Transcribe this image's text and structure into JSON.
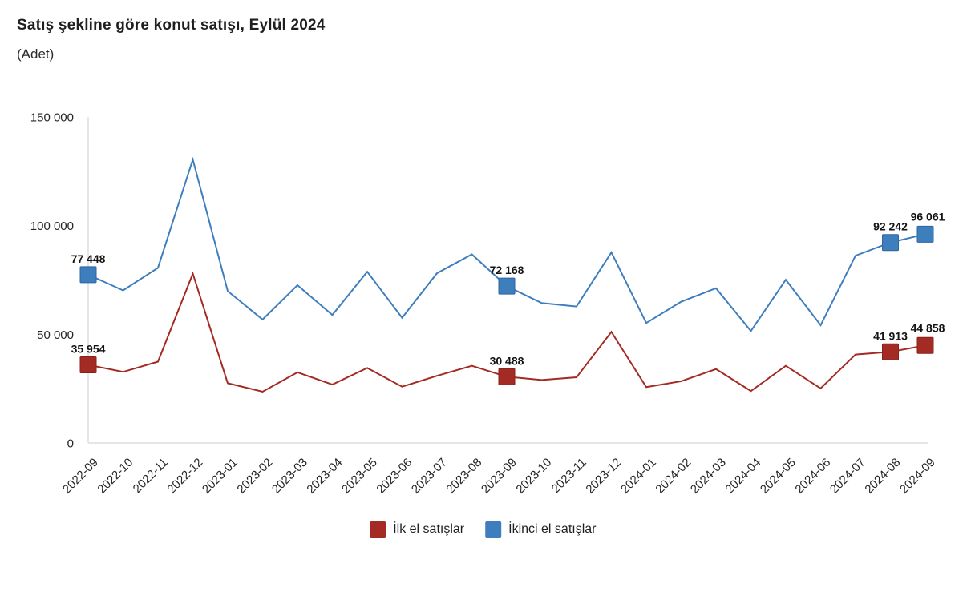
{
  "header": {
    "title": "Satış şekline göre konut satışı, Eylül 2024",
    "subtitle": "(Adet)"
  },
  "legend": [
    {
      "label": "İlk el satışlar",
      "color": "#A32B23"
    },
    {
      "label": "İkinci el satışlar",
      "color": "#3E7EBD"
    }
  ],
  "chart_data": {
    "type": "line",
    "title": "Satış şekline göre konut satışı, Eylül 2024",
    "subtitle": "(Adet)",
    "unit": "Adet",
    "grid": false,
    "legend_position": "bottom",
    "ylim": [
      0,
      150000
    ],
    "y_ticks": [
      {
        "value": 0,
        "label": "0"
      },
      {
        "value": 50000,
        "label": "50 000"
      },
      {
        "value": 100000,
        "label": "100 000"
      },
      {
        "value": 150000,
        "label": "150 000"
      }
    ],
    "x": [
      "2022-09",
      "2022-10",
      "2022-11",
      "2022-12",
      "2023-01",
      "2023-02",
      "2023-03",
      "2023-04",
      "2023-05",
      "2023-06",
      "2023-07",
      "2023-08",
      "2023-09",
      "2023-10",
      "2023-11",
      "2023-12",
      "2024-01",
      "2024-02",
      "2024-03",
      "2024-04",
      "2024-05",
      "2024-06",
      "2024-07",
      "2024-08",
      "2024-09"
    ],
    "series": [
      {
        "name": "İlk el satışlar",
        "key": "ilk-el-satislar",
        "color": "#A32B23",
        "marker_border": "#8A201A",
        "values": [
          35954,
          32700,
          37400,
          77900,
          27500,
          23600,
          32500,
          26900,
          34500,
          25900,
          30900,
          35500,
          30488,
          29000,
          30200,
          51100,
          25700,
          28400,
          34000,
          23900,
          35500,
          25100,
          40700,
          41913,
          44858
        ],
        "point_labels": {
          "0": "35 954",
          "12": "30 488",
          "23": "41 913",
          "24": "44 858"
        }
      },
      {
        "name": "İkinci el satışlar",
        "key": "ikinci-el-satislar",
        "color": "#3E7EBD",
        "marker_border": "#2F66A0",
        "values": [
          77448,
          70200,
          80600,
          130400,
          69900,
          56800,
          72600,
          58900,
          78800,
          57600,
          78100,
          86800,
          72168,
          64400,
          62800,
          87700,
          55200,
          65000,
          71200,
          51500,
          75100,
          54200,
          86200,
          92242,
          96061
        ],
        "point_labels": {
          "0": "77 448",
          "12": "72 168",
          "23": "92 242",
          "24": "96 061"
        }
      }
    ]
  }
}
